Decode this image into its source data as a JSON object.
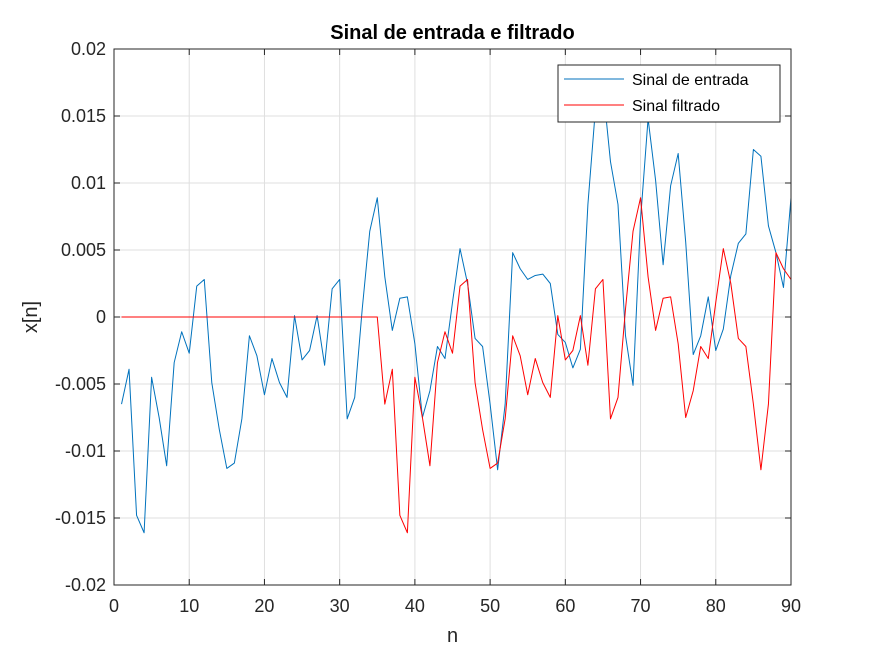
{
  "chart_data": {
    "type": "line",
    "title": "Sinal de entrada e filtrado",
    "xlabel": "n",
    "ylabel": "x[n]",
    "xlim": [
      0,
      90
    ],
    "ylim": [
      -0.02,
      0.02
    ],
    "grid": true,
    "legend_position": "top-right",
    "xticks": [
      0,
      10,
      20,
      30,
      40,
      50,
      60,
      70,
      80,
      90
    ],
    "xtick_labels": [
      "0",
      "10",
      "20",
      "30",
      "40",
      "50",
      "60",
      "70",
      "80",
      "90"
    ],
    "yticks": [
      -0.02,
      -0.015,
      -0.01,
      -0.005,
      0,
      0.005,
      0.01,
      0.015,
      0.02
    ],
    "ytick_labels": [
      "-0.02",
      "-0.015",
      "-0.01",
      "-0.005",
      "0",
      "0.005",
      "0.01",
      "0.015",
      "0.02"
    ],
    "series": [
      {
        "name": "Sinal de entrada",
        "color": "#0072BD",
        "x": [
          1,
          2,
          3,
          4,
          5,
          6,
          7,
          8,
          9,
          10,
          11,
          12,
          13,
          14,
          15,
          16,
          17,
          18,
          19,
          20,
          21,
          22,
          23,
          24,
          25,
          26,
          27,
          28,
          29,
          30,
          31,
          32,
          33,
          34,
          35,
          36,
          37,
          38,
          39,
          40,
          41,
          42,
          43,
          44,
          45,
          46,
          47,
          48,
          49,
          50,
          51,
          52,
          53,
          54,
          55,
          56,
          57,
          58,
          59,
          60,
          61,
          62,
          63,
          64,
          65,
          66,
          67,
          68,
          69,
          70,
          71,
          72,
          73,
          74,
          75,
          76,
          77,
          78,
          79,
          80,
          81,
          82,
          83,
          84,
          85,
          86,
          87,
          88,
          89,
          90
        ],
        "values": [
          -0.0065,
          -0.0039,
          -0.0148,
          -0.0161,
          -0.0045,
          -0.0075,
          -0.0111,
          -0.0034,
          -0.0011,
          -0.0027,
          0.0023,
          0.0028,
          -0.0049,
          -0.0084,
          -0.0113,
          -0.0109,
          -0.0076,
          -0.0014,
          -0.0029,
          -0.0058,
          -0.0031,
          -0.0049,
          -0.006,
          0.0001,
          -0.0032,
          -0.0025,
          0.0001,
          -0.0036,
          0.0021,
          0.0028,
          -0.0076,
          -0.006,
          0.0006,
          0.0064,
          0.0089,
          0.003,
          -0.001,
          0.0014,
          0.0015,
          -0.002,
          -0.0075,
          -0.0055,
          -0.0022,
          -0.0031,
          0.0011,
          0.0051,
          0.0025,
          -0.0016,
          -0.0022,
          -0.0065,
          -0.0114,
          -0.0065,
          0.0048,
          0.0036,
          0.0028,
          0.0031,
          0.0032,
          0.0025,
          -0.0013,
          -0.0019,
          -0.0038,
          -0.0024,
          0.0084,
          0.0155,
          0.0172,
          0.0116,
          0.0084,
          -0.0014,
          -0.0051,
          0.0073,
          0.0148,
          0.0102,
          0.0039,
          0.0098,
          0.0122,
          0.0056,
          -0.0028,
          -0.0014,
          0.0015,
          -0.0025,
          -0.0009,
          0.0031,
          0.0055,
          0.0062,
          0.0125,
          0.012,
          0.0068,
          0.0048,
          0.0022,
          0.0089
        ]
      },
      {
        "name": "Sinal filtrado",
        "color": "#FF0000",
        "x": [
          1,
          2,
          3,
          4,
          5,
          6,
          7,
          8,
          9,
          10,
          11,
          12,
          13,
          14,
          15,
          16,
          17,
          18,
          19,
          20,
          21,
          22,
          23,
          24,
          25,
          26,
          27,
          28,
          29,
          30,
          31,
          32,
          33,
          34,
          35,
          36,
          37,
          38,
          39,
          40,
          41,
          42,
          43,
          44,
          45,
          46,
          47,
          48,
          49,
          50,
          51,
          52,
          53,
          54,
          55,
          56,
          57,
          58,
          59,
          60,
          61,
          62,
          63,
          64,
          65,
          66,
          67,
          68,
          69,
          70,
          71,
          72,
          73,
          74,
          75,
          76,
          77,
          78,
          79,
          80,
          81,
          82,
          83,
          84,
          85,
          86,
          87,
          88,
          89,
          90
        ],
        "values": [
          0,
          0,
          0,
          0,
          0,
          0,
          0,
          0,
          0,
          0,
          0,
          0,
          0,
          0,
          0,
          0,
          0,
          0,
          0,
          0,
          0,
          0,
          0,
          0,
          0,
          0,
          0,
          0,
          0,
          0,
          0,
          0,
          0,
          0,
          0,
          -0.0065,
          -0.0039,
          -0.0148,
          -0.0161,
          -0.0045,
          -0.0075,
          -0.0111,
          -0.0034,
          -0.0011,
          -0.0027,
          0.0023,
          0.0028,
          -0.0049,
          -0.0084,
          -0.0113,
          -0.0109,
          -0.0076,
          -0.0014,
          -0.0029,
          -0.0058,
          -0.0031,
          -0.0049,
          -0.006,
          0.0001,
          -0.0032,
          -0.0025,
          0.0001,
          -0.0036,
          0.0021,
          0.0028,
          -0.0076,
          -0.006,
          0.0006,
          0.0064,
          0.0089,
          0.003,
          -0.001,
          0.0014,
          0.0015,
          -0.002,
          -0.0075,
          -0.0055,
          -0.0022,
          -0.0031,
          0.0011,
          0.0051,
          0.0025,
          -0.0016,
          -0.0022,
          -0.0065,
          -0.0114,
          -0.0065,
          0.0048,
          0.0036,
          0.0028
        ]
      }
    ]
  }
}
